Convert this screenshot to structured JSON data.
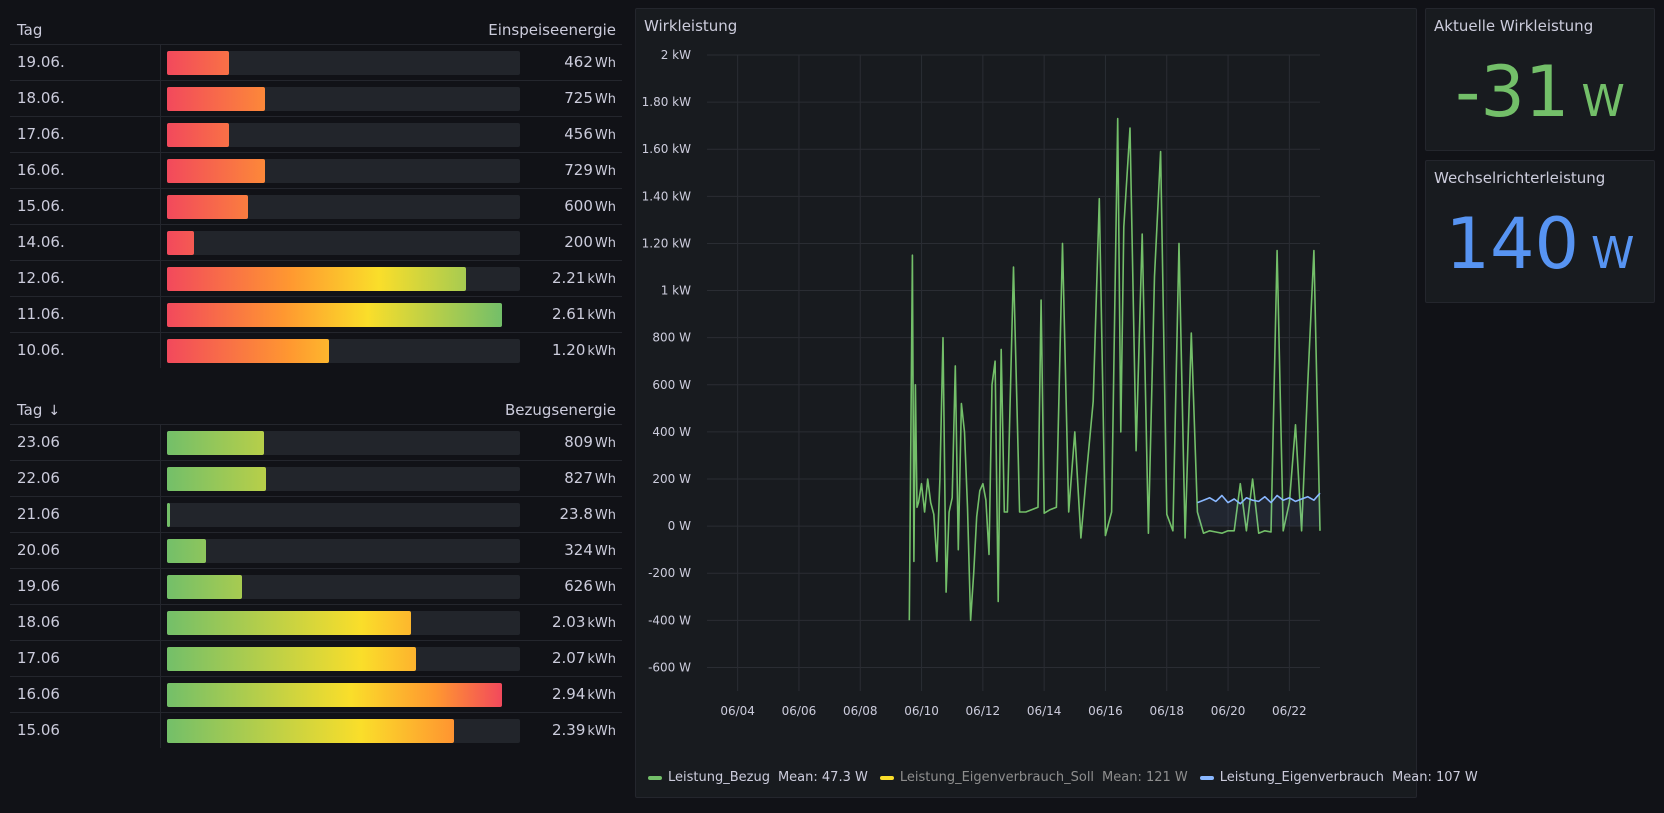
{
  "feed_table": {
    "col_day": "Tag",
    "col_value": "Einspeiseenergie",
    "gradient": "linear-gradient(90deg, #f2495c 0%, #ff9830 35%, #fade2a 60%, #73bf69 100%)",
    "rows": [
      {
        "day": "19.06.",
        "value": "462",
        "unit": "Wh",
        "fraction": 0.177
      },
      {
        "day": "18.06.",
        "value": "725",
        "unit": "Wh",
        "fraction": 0.278
      },
      {
        "day": "17.06.",
        "value": "456",
        "unit": "Wh",
        "fraction": 0.175
      },
      {
        "day": "16.06.",
        "value": "729",
        "unit": "Wh",
        "fraction": 0.279
      },
      {
        "day": "15.06.",
        "value": "600",
        "unit": "Wh",
        "fraction": 0.23
      },
      {
        "day": "14.06.",
        "value": "200",
        "unit": "Wh",
        "fraction": 0.077
      },
      {
        "day": "12.06.",
        "value": "2.21",
        "unit": "kWh",
        "fraction": 0.847
      },
      {
        "day": "11.06.",
        "value": "2.61",
        "unit": "kWh",
        "fraction": 1.0
      },
      {
        "day": "10.06.",
        "value": "1.20",
        "unit": "kWh",
        "fraction": 0.46
      }
    ]
  },
  "draw_table": {
    "col_day": "Tag",
    "col_value": "Bezugsenergie",
    "sort_icon": "arrow-down-icon",
    "gradient": "linear-gradient(90deg, #73bf69 0%, #fade2a 55%, #ff9830 80%, #f2495c 100%)",
    "rows": [
      {
        "day": "23.06",
        "value": "809",
        "unit": "Wh",
        "fraction": 0.275
      },
      {
        "day": "22.06",
        "value": "827",
        "unit": "Wh",
        "fraction": 0.281
      },
      {
        "day": "21.06",
        "value": "23.8",
        "unit": "Wh",
        "fraction": 0.008
      },
      {
        "day": "20.06",
        "value": "324",
        "unit": "Wh",
        "fraction": 0.11
      },
      {
        "day": "19.06",
        "value": "626",
        "unit": "Wh",
        "fraction": 0.213
      },
      {
        "day": "18.06",
        "value": "2.03",
        "unit": "kWh",
        "fraction": 0.69
      },
      {
        "day": "17.06",
        "value": "2.07",
        "unit": "kWh",
        "fraction": 0.704
      },
      {
        "day": "16.06",
        "value": "2.94",
        "unit": "kWh",
        "fraction": 1.0
      },
      {
        "day": "15.06",
        "value": "2.39",
        "unit": "kWh",
        "fraction": 0.813
      }
    ]
  },
  "chart": {
    "title": "Wirkleistung",
    "legend": [
      {
        "name": "Leistung_Bezug",
        "mean_label": "Mean: 47.3 W",
        "color": "#73bf69",
        "dim": false
      },
      {
        "name": "Leistung_Eigenverbrauch_Soll",
        "mean_label": "Mean: 121 W",
        "color": "#fade2a",
        "dim": true
      },
      {
        "name": "Leistung_Eigenverbrauch",
        "mean_label": "Mean: 107 W",
        "color": "#8ab8ff",
        "dim": false
      }
    ]
  },
  "chart_data": {
    "type": "line",
    "title": "Wirkleistung",
    "y_unit": "W",
    "ylim": [
      -700,
      2000
    ],
    "y_ticks": [
      {
        "value": 2000,
        "label": "2 kW"
      },
      {
        "value": 1800,
        "label": "1.80 kW"
      },
      {
        "value": 1600,
        "label": "1.60 kW"
      },
      {
        "value": 1400,
        "label": "1.40 kW"
      },
      {
        "value": 1200,
        "label": "1.20 kW"
      },
      {
        "value": 1000,
        "label": "1 kW"
      },
      {
        "value": 800,
        "label": "800 W"
      },
      {
        "value": 600,
        "label": "600 W"
      },
      {
        "value": 400,
        "label": "400 W"
      },
      {
        "value": 200,
        "label": "200 W"
      },
      {
        "value": 0,
        "label": "0 W"
      },
      {
        "value": -200,
        "label": "-200 W"
      },
      {
        "value": -400,
        "label": "-400 W"
      },
      {
        "value": -600,
        "label": "-600 W"
      }
    ],
    "x_unit": "days in June",
    "xlim": [
      3.0,
      23.0
    ],
    "x_ticks": [
      {
        "value": 4,
        "label": "06/04"
      },
      {
        "value": 6,
        "label": "06/06"
      },
      {
        "value": 8,
        "label": "06/08"
      },
      {
        "value": 10,
        "label": "06/10"
      },
      {
        "value": 12,
        "label": "06/12"
      },
      {
        "value": 14,
        "label": "06/14"
      },
      {
        "value": 16,
        "label": "06/16"
      },
      {
        "value": 18,
        "label": "06/18"
      },
      {
        "value": 20,
        "label": "06/20"
      },
      {
        "value": 22,
        "label": "06/22"
      }
    ],
    "grid": true,
    "legend_position": "bottom",
    "series": [
      {
        "name": "Leistung_Bezug",
        "color": "#73bf69",
        "x": [
          9.6,
          9.65,
          9.7,
          9.75,
          9.8,
          9.85,
          9.9,
          10.0,
          10.1,
          10.2,
          10.3,
          10.4,
          10.5,
          10.6,
          10.7,
          10.8,
          10.9,
          11.0,
          11.1,
          11.2,
          11.3,
          11.4,
          11.5,
          11.6,
          11.7,
          11.8,
          11.9,
          12.0,
          12.1,
          12.2,
          12.3,
          12.4,
          12.5,
          12.6,
          12.7,
          12.8,
          13.0,
          13.2,
          13.4,
          13.6,
          13.8,
          13.9,
          14.0,
          14.2,
          14.4,
          14.6,
          14.8,
          15.0,
          15.2,
          15.4,
          15.6,
          15.8,
          16.0,
          16.2,
          16.4,
          16.5,
          16.6,
          16.8,
          17.0,
          17.2,
          17.4,
          17.6,
          17.8,
          18.0,
          18.2,
          18.4,
          18.6,
          18.8,
          19.0,
          19.2,
          19.4,
          19.6,
          19.8,
          20.0,
          20.2,
          20.4,
          20.6,
          20.8,
          21.0,
          21.2,
          21.4,
          21.6,
          21.8,
          22.0,
          22.2,
          22.4,
          22.6,
          22.8,
          23.0
        ],
        "y": [
          -400,
          350,
          1150,
          -150,
          600,
          80,
          100,
          180,
          60,
          200,
          100,
          50,
          -150,
          200,
          800,
          -280,
          60,
          120,
          680,
          -100,
          520,
          400,
          80,
          -400,
          -200,
          40,
          150,
          180,
          110,
          -120,
          600,
          700,
          -320,
          750,
          60,
          60,
          1100,
          60,
          60,
          70,
          80,
          960,
          55,
          70,
          80,
          1200,
          60,
          400,
          -50,
          250,
          530,
          1390,
          -40,
          60,
          1730,
          400,
          1270,
          1690,
          320,
          1240,
          -30,
          1060,
          1590,
          50,
          -20,
          1200,
          -50,
          820,
          60,
          -30,
          -20,
          -25,
          -30,
          -20,
          -20,
          180,
          -20,
          200,
          -30,
          -20,
          -25,
          1170,
          -20,
          100,
          430,
          -20,
          600,
          1170,
          -20
        ]
      },
      {
        "name": "Leistung_Eigenverbrauch_Soll",
        "color": "#fade2a",
        "x": [],
        "y": []
      },
      {
        "name": "Leistung_Eigenverbrauch",
        "color": "#8ab8ff",
        "x": [
          19.0,
          19.2,
          19.4,
          19.6,
          19.8,
          20.0,
          20.2,
          20.4,
          20.6,
          20.8,
          21.0,
          21.2,
          21.4,
          21.6,
          21.8,
          22.0,
          22.2,
          22.4,
          22.6,
          22.8,
          23.0
        ],
        "y": [
          100,
          110,
          120,
          105,
          130,
          100,
          115,
          95,
          120,
          110,
          105,
          125,
          100,
          130,
          110,
          120,
          105,
          115,
          125,
          110,
          140
        ]
      }
    ]
  },
  "stat_wirk": {
    "title": "Aktuelle Wirkleistung",
    "value": "-31",
    "unit": "W",
    "color": "#73bf69"
  },
  "stat_wr": {
    "title": "Wechselrichterleistung",
    "value": "140",
    "unit": "W",
    "color": "#5794f2"
  }
}
